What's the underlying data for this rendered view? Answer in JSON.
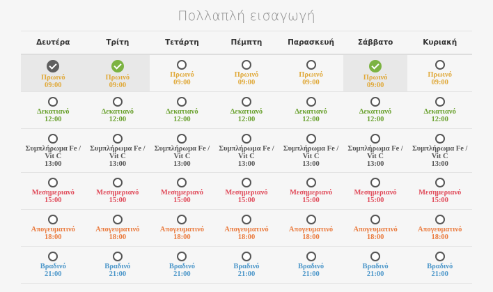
{
  "title": "Πολλαπλή εισαγωγή",
  "days": [
    "Δευτέρα",
    "Τρίτη",
    "Τετάρτη",
    "Πέμπτη",
    "Παρασκευή",
    "Σάββατο",
    "Κυριακή"
  ],
  "meals": [
    {
      "label": "Πρωινό",
      "time": "09:00",
      "color": "#e0a93a"
    },
    {
      "label": "Δεκατιανό",
      "time": "12:00",
      "color": "#6aa12f"
    },
    {
      "label": "Συμπλήρωμα Fe / Vit C",
      "time": "13:00",
      "color": "#555555"
    },
    {
      "label": "Μεσημεριανό",
      "time": "15:00",
      "color": "#e04b5a"
    },
    {
      "label": "Απογευματινό",
      "time": "18:00",
      "color": "#ea7a3d"
    },
    {
      "label": "Βραδινό",
      "time": "21:00",
      "color": "#4b96c9"
    }
  ],
  "checked": [
    {
      "row": 0,
      "col": 0,
      "style": "dark"
    },
    {
      "row": 0,
      "col": 1,
      "style": "green"
    },
    {
      "row": 0,
      "col": 5,
      "style": "green"
    }
  ],
  "selected_cells": [
    {
      "row": 0,
      "col": 0
    },
    {
      "row": 0,
      "col": 1
    },
    {
      "row": 0,
      "col": 5
    }
  ],
  "colors": {
    "check_green": "#7cb342",
    "check_dark": "#5f5f5f"
  }
}
